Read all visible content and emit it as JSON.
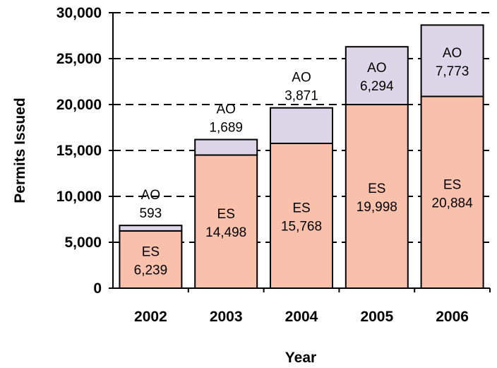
{
  "chart_data": {
    "type": "bar",
    "stacked": true,
    "title": "",
    "xlabel": "Year",
    "ylabel": "Permits Issued",
    "ylim": [
      0,
      30000
    ],
    "yticks": [
      0,
      5000,
      10000,
      15000,
      20000,
      25000,
      30000
    ],
    "ytick_labels": [
      "0",
      "5,000",
      "10,000",
      "15,000",
      "20,000",
      "25,000",
      "30,000"
    ],
    "grid": "horizontal dashed",
    "legend": "none",
    "categories": [
      "2002",
      "2003",
      "2004",
      "2005",
      "2006"
    ],
    "series": [
      {
        "name": "ES",
        "color": "#f9c0ac",
        "values": [
          6239,
          14498,
          15768,
          19998,
          20884
        ],
        "labels": [
          "6,239",
          "14,498",
          "15,768",
          "19,998",
          "20,884"
        ],
        "label_position": "inside"
      },
      {
        "name": "AO",
        "color": "#dcd6e8",
        "values": [
          593,
          1689,
          3871,
          6294,
          7773
        ],
        "labels": [
          "593",
          "1,689",
          "3,871",
          "6,294",
          "7,773"
        ],
        "label_position": [
          "above",
          "above",
          "above",
          "inside",
          "inside"
        ]
      }
    ]
  }
}
